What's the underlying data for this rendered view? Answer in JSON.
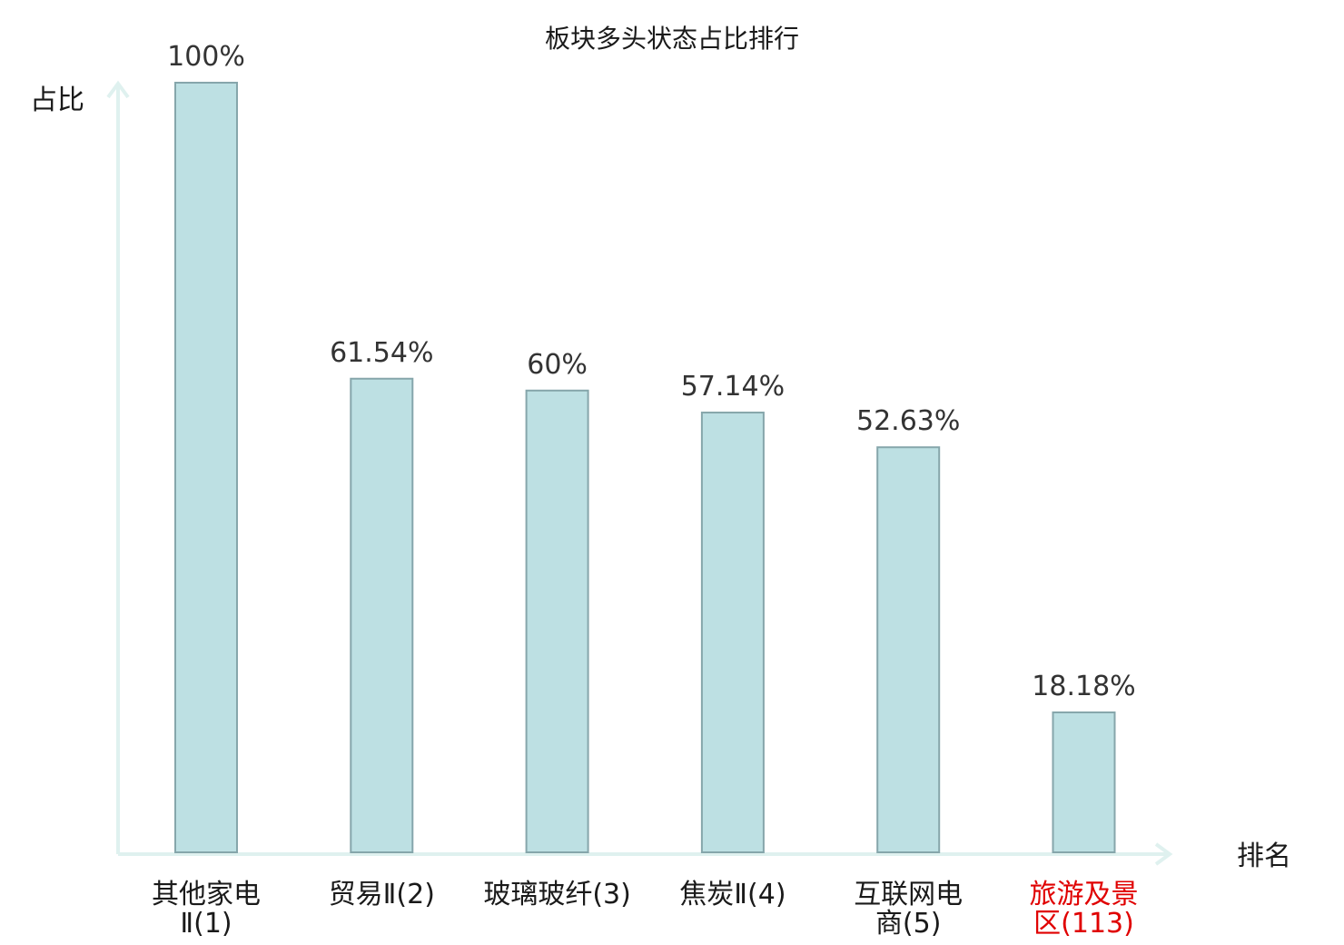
{
  "chart_data": {
    "type": "bar",
    "title": "板块多头状态占比排行",
    "ylabel": "占比",
    "xlabel": "排名",
    "ylim": [
      0,
      100
    ],
    "categories": [
      {
        "lines": [
          "其他家电",
          "Ⅱ(1)"
        ],
        "highlight": false
      },
      {
        "lines": [
          "贸易Ⅱ(2)"
        ],
        "highlight": false
      },
      {
        "lines": [
          "玻璃玻纤(3)"
        ],
        "highlight": false
      },
      {
        "lines": [
          "焦炭Ⅱ(4)"
        ],
        "highlight": false
      },
      {
        "lines": [
          "互联网电",
          "商(5)"
        ],
        "highlight": false
      },
      {
        "lines": [
          "旅游及景",
          "区(113)"
        ],
        "highlight": true
      }
    ],
    "values": [
      100,
      61.54,
      60,
      57.14,
      52.63,
      18.18
    ],
    "value_labels": [
      "100%",
      "61.54%",
      "60%",
      "57.14%",
      "52.63%",
      "18.18%"
    ],
    "grid": false,
    "legend": "none"
  },
  "colors": {
    "bar_fill": "#bde0e3",
    "bar_stroke": "#86a6ab",
    "axis": "#dff1ef",
    "text": "#1a1a1a",
    "value_text": "#333333",
    "highlight_text": "#e00000"
  }
}
